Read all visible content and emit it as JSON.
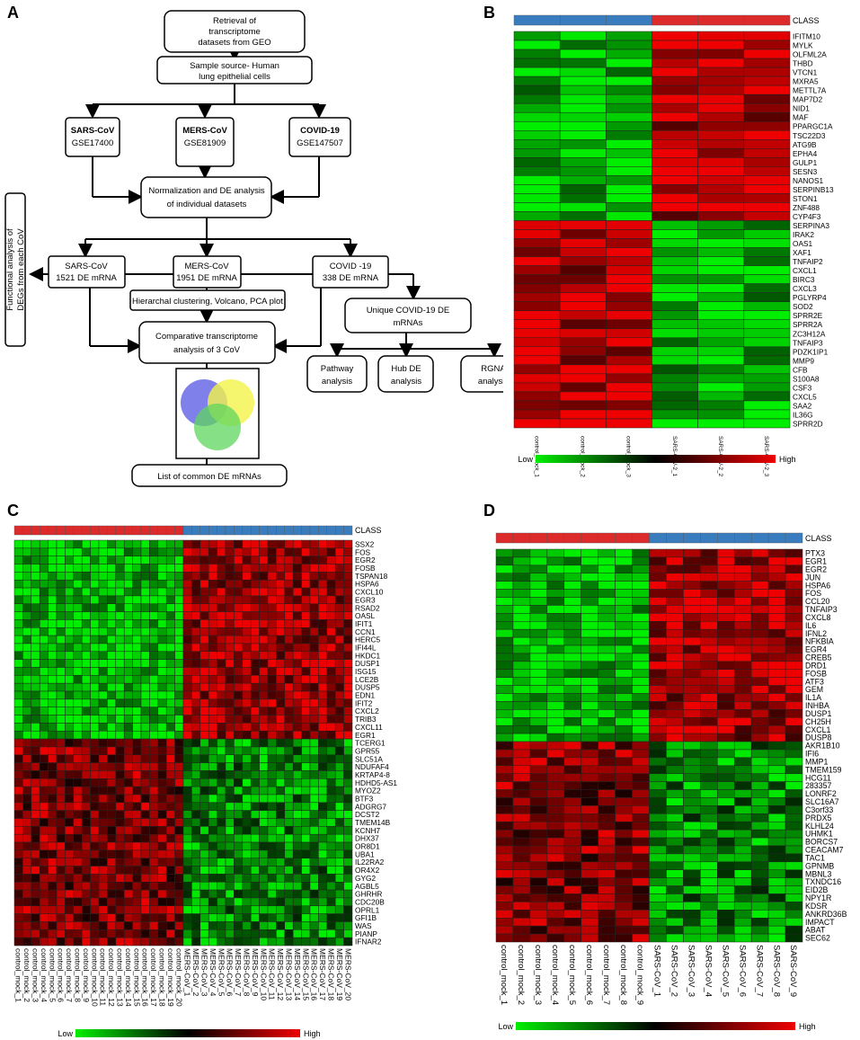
{
  "panels": {
    "a": "A",
    "b": "B",
    "c": "C",
    "d": "D"
  },
  "flowchart": {
    "retrieval": [
      "Retrieval of",
      "transcriptome",
      "datasets from GEO"
    ],
    "sample_source": [
      "Sample source- Human",
      "lung epithelial cells"
    ],
    "sars": {
      "name": "SARS-CoV",
      "gse": "GSE17400"
    },
    "mers": {
      "name": "MERS-CoV",
      "gse": "GSE81909"
    },
    "covid": {
      "name": "COVID-19",
      "gse": "GSE147507"
    },
    "normalization": [
      "Normalization and DE analysis",
      "of individual datasets"
    ],
    "sars_de": [
      "SARS-CoV",
      "1521 DE mRNA"
    ],
    "mers_de": [
      "MERS-CoV",
      "1951 DE mRNA"
    ],
    "covid_de": [
      "COVID -19",
      "338 DE mRNA"
    ],
    "functional": [
      "Functional analysis of",
      "DEGs from each CoV"
    ],
    "hierarchical": "Hierarchal clustering, Volcano, PCA plot",
    "comparative": [
      "Comparative transcriptome",
      "analysis of 3 CoV"
    ],
    "unique": [
      "Unique COVID-19 DE",
      "mRNAs"
    ],
    "pathway": [
      "Pathway",
      "analysis"
    ],
    "hub": [
      "Hub DE",
      "analysis"
    ],
    "rgna": [
      "RGNA",
      "analysis"
    ],
    "list": "List of common DE mRNAs"
  },
  "heatmaps": {
    "class_label": "CLASS",
    "legend_low": "Low",
    "legend_high": "High",
    "B": {
      "samples": [
        "control_mock_1",
        "control_mock_2",
        "control_mock_3",
        "SARS-CoV-2_1",
        "SARS-CoV-2_2",
        "SARS-CoV-2_3"
      ],
      "class": [
        "control",
        "control",
        "control",
        "infected",
        "infected",
        "infected"
      ],
      "genes": [
        "IFITM10",
        "MYLK",
        "OLFML2A",
        "THBD",
        "VTCN1",
        "MXRA5",
        "METTL7A",
        "MAP7D2",
        "NID1",
        "MAF",
        "PPARGC1A",
        "TSC22D3",
        "ATG9B",
        "EPHA4",
        "GULP1",
        "SESN3",
        "NANOS1",
        "SERPINB13",
        "STON1",
        "ZNF488",
        "CYP4F3",
        "SERPINA3",
        "IRAK2",
        "OAS1",
        "XAF1",
        "TNFAIP2",
        "CXCL1",
        "BIRC3",
        "CXCL3",
        "PGLYRP4",
        "SOD2",
        "SPRR2E",
        "SPRR2A",
        "ZC3H12A",
        "TNFAIP3",
        "PDZK1IP1",
        "MMP9",
        "CFB",
        "S100A8",
        "CSF3",
        "CXCL5",
        "SAA2",
        "IL36G",
        "SPRR2D"
      ],
      "up_in_control_count": 21
    },
    "C": {
      "samples": [
        "control_mock_1",
        "control_mock_2",
        "control_mock_3",
        "control_mock_4",
        "control_mock_5",
        "control_mock_6",
        "control_mock_7",
        "control_mock_8",
        "control_mock_9",
        "control_mock_10",
        "control_mock_11",
        "control_mock_12",
        "control_mock_13",
        "control_mock_14",
        "control_mock_15",
        "control_mock_16",
        "control_mock_17",
        "control_mock_18",
        "control_mock_19",
        "control_mock_20",
        "MERS-CoV_1",
        "MERS-CoV_2",
        "MERS-CoV_3",
        "MERS-CoV_4",
        "MERS-CoV_5",
        "MERS-CoV_6",
        "MERS-CoV_7",
        "MERS-CoV_8",
        "MERS-CoV_9",
        "MERS-CoV_10",
        "MERS-CoV_11",
        "MERS-CoV_12",
        "MERS-CoV_13",
        "MERS-CoV_14",
        "MERS-CoV_15",
        "MERS-CoV_16",
        "MERS-CoV_17",
        "MERS-CoV_18",
        "MERS-CoV_19",
        "MERS-CoV_20"
      ],
      "control_count": 20,
      "genes": [
        "SSX2",
        "FOS",
        "EGR2",
        "FOSB",
        "TSPAN18",
        "HSPA6",
        "CXCL10",
        "EGR3",
        "RSAD2",
        "OASL",
        "IFIT1",
        "CCN1",
        "HERC5",
        "IFI44L",
        "HKDC1",
        "DUSP1",
        "ISG15",
        "LCE2B",
        "DUSP5",
        "EDN1",
        "IFIT2",
        "CXCL2",
        "TRIB3",
        "CXCL11",
        "EGR1",
        "TCERG1",
        "GPR55",
        "SLC51A",
        "NDUFAF4",
        "KRTAP4-8",
        "HDHD5-AS1",
        "MYOZ2",
        "BTF3",
        "ADGRG7",
        "DCST2",
        "TMEM14B",
        "KCNH7",
        "DHX37",
        "OR8D1",
        "UBA1",
        "IL22RA2",
        "OR4X2",
        "GYG2",
        "AGBL5",
        "GHRHR",
        "CDC20B",
        "OPRL1",
        "GFI1B",
        "WAS",
        "PIANP",
        "IFNAR2"
      ],
      "up_in_infected_count": 25
    },
    "D": {
      "samples": [
        "control_mock_1",
        "control_mock_2",
        "control_mock_3",
        "control_mock_4",
        "control_mock_5",
        "control_mock_6",
        "control_mock_7",
        "control_mock_8",
        "control_mock_9",
        "SARS-CoV_1",
        "SARS-CoV_2",
        "SARS-CoV_3",
        "SARS-CoV_4",
        "SARS-CoV_5",
        "SARS-CoV_6",
        "SARS-CoV_7",
        "SARS-CoV_8",
        "SARS-CoV_9"
      ],
      "control_count": 9,
      "genes": [
        "PTX3",
        "EGR1",
        "EGR2",
        "JUN",
        "HSPA6",
        "FOS",
        "CCL20",
        "TNFAIP3",
        "CXCL8",
        "IL6",
        "IFNL2",
        "NFKBIA",
        "EGR4",
        "CREB5",
        "DRD1",
        "FOSB",
        "ATF3",
        "GEM",
        "IL1A",
        "INHBA",
        "DUSP1",
        "CH25H",
        "CXCL1",
        "DUSP8",
        "AKR1B10",
        "IFI6",
        "MMP1",
        "TMEM159",
        "HCG11",
        "283357",
        "LONRF2",
        "SLC16A7",
        "C3orf33",
        "PRDX5",
        "KLHL24",
        "UHMK1",
        "BORCS7",
        "CEACAM7",
        "TAC1",
        "GPNMB",
        "MBNL3",
        "TXNDC16",
        "EID2B",
        "NPY1R",
        "KDSR",
        "ANKRD36B",
        "IMPACT",
        "ABAT",
        "SEC62"
      ],
      "up_in_infected_count": 24
    }
  },
  "colors": {
    "class_control": "#3a7dbf",
    "class_infected": "#dd2b2b",
    "low": "#00ee00",
    "mid": "#000000",
    "high": "#ee0000"
  }
}
